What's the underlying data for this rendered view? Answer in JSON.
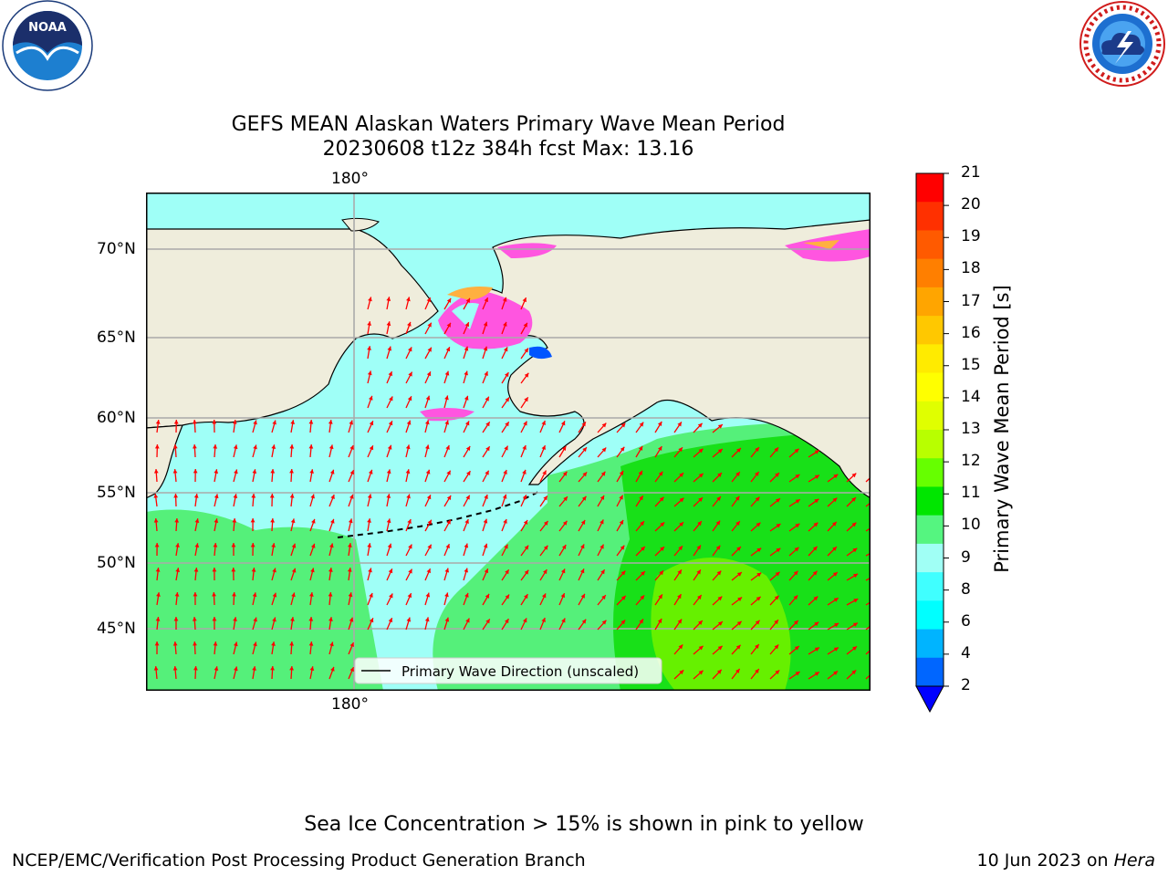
{
  "header": {
    "title_line1": "GEFS MEAN Alaskan Waters Primary Wave Mean Period",
    "title_line2": "20230608 t12z 384h fcst   Max: 13.16"
  },
  "logos": {
    "left": "NOAA",
    "left_ring": "NATIONAL OCEANIC AND ATMOSPHERIC ADMINISTRATION · U.S. DEPARTMENT OF COMMERCE",
    "right_ring": "NATIONAL WEATHER SERVICE"
  },
  "map": {
    "lon_label_top": "180°",
    "lon_label_bottom": "180°",
    "lat_labels": [
      "70°N",
      "65°N",
      "60°N",
      "55°N",
      "50°N",
      "45°N"
    ],
    "legend": "Primary Wave Direction (unscaled)",
    "colors": {
      "land": "#efeddc",
      "ocean_cyan": "#9ffff7",
      "ocean_green_light": "#55f07a",
      "ocean_green": "#18e018",
      "ice_pink": "#ff55e0",
      "ice_orange": "#ffb040",
      "arrow": "#ff0000"
    }
  },
  "colorbar": {
    "label": "Primary Wave Mean Period [s]",
    "ticks": [
      "21",
      "20",
      "19",
      "18",
      "17",
      "16",
      "15",
      "14",
      "13",
      "12",
      "11",
      "10",
      "9",
      "8",
      "6",
      "4",
      "2"
    ],
    "colors": [
      "#ff0000",
      "#ff3000",
      "#ff5a00",
      "#ff7f00",
      "#ffa500",
      "#ffc800",
      "#ffeb00",
      "#ffff00",
      "#e0ff00",
      "#b8ff00",
      "#66ff00",
      "#00e600",
      "#55f580",
      "#a0fff5",
      "#40ffff",
      "#00ffff",
      "#00b4ff",
      "#0066ff"
    ],
    "extend_color": "#0000ff"
  },
  "footer": {
    "note": "Sea Ice Concentration > 15% is shown in pink to yellow",
    "credit": "NCEP/EMC/Verification Post Processing Product Generation Branch",
    "date": "10 Jun 2023 on ",
    "machine": "Hera"
  }
}
